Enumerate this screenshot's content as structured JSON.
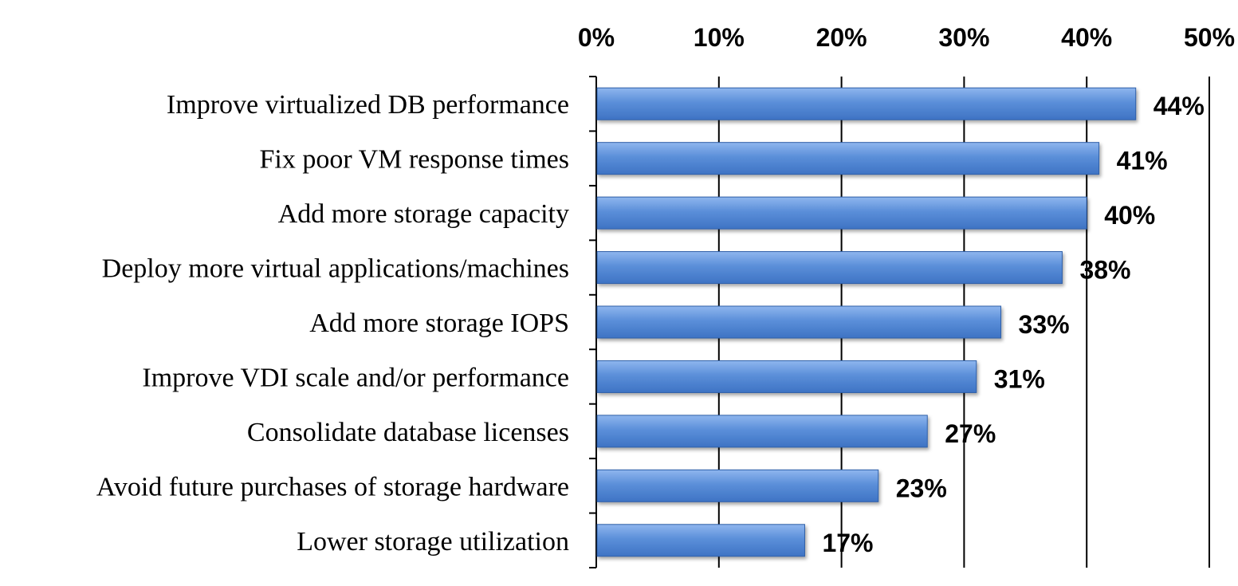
{
  "chart_data": {
    "type": "bar",
    "orientation": "horizontal",
    "title": "",
    "xlabel": "",
    "ylabel": "",
    "categories": [
      "Improve virtualized DB performance",
      "Fix poor VM response times",
      "Add more storage capacity",
      "Deploy more virtual applications/machines",
      "Add more storage IOPS",
      "Improve VDI scale and/or performance",
      "Consolidate database licenses",
      "Avoid future purchases of storage hardware",
      "Lower storage utilization"
    ],
    "values": [
      44,
      41,
      40,
      38,
      33,
      31,
      27,
      23,
      17
    ],
    "value_labels": [
      "44%",
      "41%",
      "40%",
      "38%",
      "33%",
      "31%",
      "27%",
      "23%",
      "17%"
    ],
    "xlim": [
      0,
      50
    ],
    "ticks": [
      0,
      10,
      20,
      30,
      40,
      50
    ],
    "tick_labels": [
      "0%",
      "10%",
      "20%",
      "30%",
      "40%",
      "50%"
    ],
    "x_axis_position": "top",
    "grid": true,
    "legend": "none",
    "bar_color": "#5b8fd9",
    "bar_edge_color": "#2f5fa8"
  }
}
